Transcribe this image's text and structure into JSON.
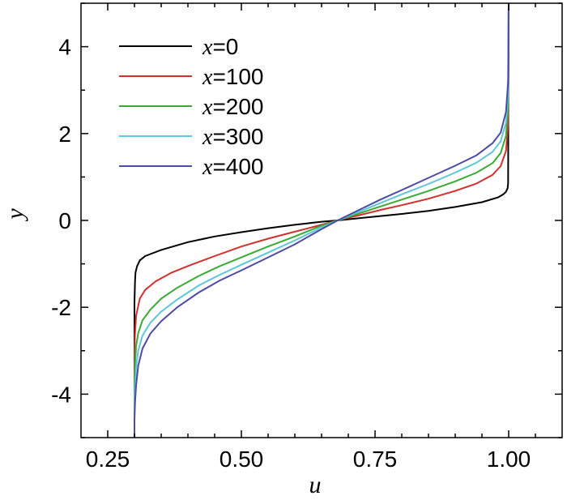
{
  "chart_data": {
    "type": "line",
    "title": "",
    "xlabel": "u",
    "ylabel": "y",
    "xlim": [
      0.2,
      1.1
    ],
    "ylim": [
      -5,
      5
    ],
    "xticks": [
      "0.25",
      "0.50",
      "0.75",
      "1.00"
    ],
    "yticks": [
      "-4",
      "-2",
      "0",
      "2",
      "4"
    ],
    "legend_position": "top-left",
    "grid": false,
    "series": [
      {
        "name": "x=0",
        "legend_var": "x",
        "legend_value": "=0",
        "color": "#000000",
        "x": [
          0.3,
          0.3,
          0.3,
          0.301,
          0.302,
          0.305,
          0.31,
          0.32,
          0.35,
          0.4,
          0.45,
          0.5,
          0.55,
          0.6,
          0.65,
          0.68,
          0.72,
          0.76,
          0.8,
          0.85,
          0.9,
          0.95,
          0.98,
          0.99,
          0.995,
          0.998,
          0.999,
          1.0
        ],
        "y": [
          -5.0,
          -3.0,
          -1.9,
          -1.4,
          -1.2,
          -1.05,
          -0.92,
          -0.82,
          -0.68,
          -0.5,
          -0.37,
          -0.27,
          -0.18,
          -0.1,
          -0.03,
          0.0,
          0.05,
          0.1,
          0.15,
          0.22,
          0.31,
          0.42,
          0.53,
          0.6,
          0.66,
          0.74,
          0.85,
          5.0
        ]
      },
      {
        "name": "x=100",
        "legend_var": "x",
        "legend_value": "=100",
        "color": "#d0312d",
        "x": [
          0.3,
          0.3,
          0.301,
          0.303,
          0.31,
          0.32,
          0.34,
          0.37,
          0.4,
          0.45,
          0.5,
          0.55,
          0.6,
          0.65,
          0.68,
          0.72,
          0.76,
          0.8,
          0.85,
          0.9,
          0.94,
          0.97,
          0.985,
          0.995,
          0.999,
          1.0
        ],
        "y": [
          -5.0,
          -3.0,
          -2.6,
          -2.2,
          -1.8,
          -1.6,
          -1.4,
          -1.2,
          -1.05,
          -0.82,
          -0.6,
          -0.42,
          -0.26,
          -0.1,
          0.0,
          0.12,
          0.24,
          0.35,
          0.5,
          0.68,
          0.85,
          1.05,
          1.25,
          1.6,
          2.2,
          5.0
        ]
      },
      {
        "name": "x=200",
        "legend_var": "x",
        "legend_value": "=200",
        "color": "#3aaa35",
        "x": [
          0.3,
          0.3,
          0.301,
          0.303,
          0.307,
          0.315,
          0.33,
          0.35,
          0.38,
          0.42,
          0.46,
          0.5,
          0.55,
          0.6,
          0.65,
          0.68,
          0.72,
          0.76,
          0.8,
          0.85,
          0.9,
          0.94,
          0.97,
          0.985,
          0.995,
          0.999,
          1.0
        ],
        "y": [
          -5.0,
          -3.8,
          -3.3,
          -2.9,
          -2.6,
          -2.3,
          -2.05,
          -1.8,
          -1.55,
          -1.28,
          -1.05,
          -0.85,
          -0.6,
          -0.37,
          -0.12,
          0.0,
          0.16,
          0.32,
          0.48,
          0.68,
          0.9,
          1.1,
          1.32,
          1.55,
          1.95,
          2.6,
          5.0
        ]
      },
      {
        "name": "x=300",
        "legend_var": "x",
        "legend_value": "=300",
        "color": "#5ec6d8",
        "x": [
          0.3,
          0.3,
          0.301,
          0.303,
          0.307,
          0.315,
          0.33,
          0.35,
          0.38,
          0.42,
          0.46,
          0.5,
          0.55,
          0.6,
          0.65,
          0.68,
          0.72,
          0.76,
          0.8,
          0.85,
          0.9,
          0.94,
          0.97,
          0.985,
          0.995,
          0.999,
          1.0
        ],
        "y": [
          -5.0,
          -4.2,
          -3.8,
          -3.4,
          -3.0,
          -2.65,
          -2.35,
          -2.1,
          -1.82,
          -1.5,
          -1.25,
          -1.02,
          -0.74,
          -0.46,
          -0.16,
          0.0,
          0.2,
          0.4,
          0.6,
          0.84,
          1.1,
          1.33,
          1.58,
          1.82,
          2.25,
          2.9,
          5.0
        ]
      },
      {
        "name": "x=400",
        "legend_var": "x",
        "legend_value": "=400",
        "color": "#4b4ba6",
        "x": [
          0.3,
          0.3,
          0.301,
          0.303,
          0.307,
          0.315,
          0.33,
          0.35,
          0.38,
          0.42,
          0.46,
          0.5,
          0.55,
          0.6,
          0.65,
          0.68,
          0.72,
          0.76,
          0.8,
          0.85,
          0.9,
          0.94,
          0.97,
          0.985,
          0.995,
          0.999,
          1.0
        ],
        "y": [
          -5.0,
          -4.6,
          -4.2,
          -3.8,
          -3.35,
          -2.95,
          -2.6,
          -2.32,
          -2.0,
          -1.66,
          -1.38,
          -1.15,
          -0.85,
          -0.55,
          -0.2,
          0.0,
          0.24,
          0.48,
          0.7,
          0.98,
          1.26,
          1.5,
          1.78,
          2.02,
          2.5,
          3.2,
          5.0
        ]
      }
    ]
  }
}
